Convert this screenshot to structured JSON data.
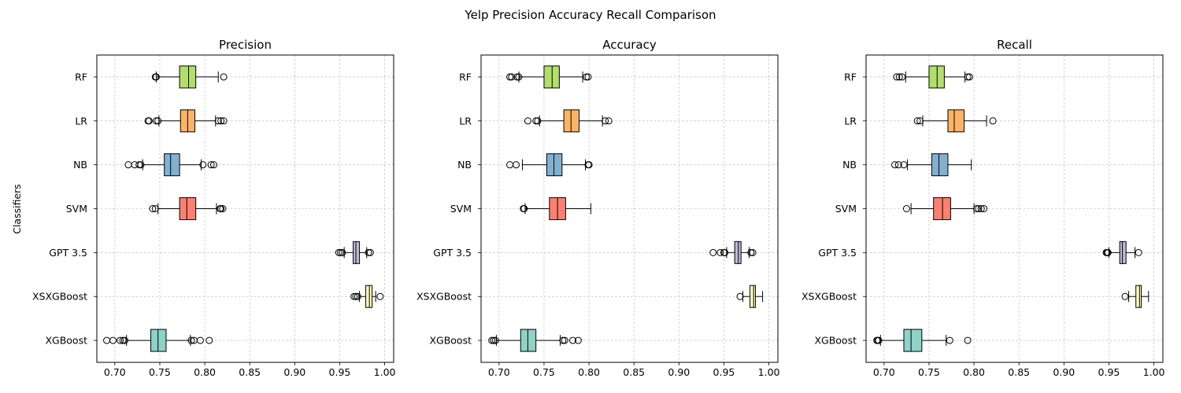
{
  "figure": {
    "suptitle": "Yelp Precision Accuracy Recall Comparison",
    "ylabel": "Classifiers",
    "grid": true,
    "orientation": "horizontal boxplot"
  },
  "series_colors": {
    "RF": "#b3de69",
    "LR": "#fdb462",
    "NB": "#80b1d3",
    "SVM": "#fb8072",
    "GPT 3.5": "#bebada",
    "XSXGBoost": "#ffffb3",
    "XGBoost": "#8dd3c7"
  },
  "chart_data": [
    {
      "type": "boxplot",
      "title": "Precision",
      "xlim": [
        0.68,
        1.01
      ],
      "xticks": [
        "0.70",
        "0.75",
        "0.80",
        "0.85",
        "0.90",
        "0.95",
        "1.00"
      ],
      "categories": [
        "RF",
        "LR",
        "NB",
        "SVM",
        "GPT 3.5",
        "XSXGBoost",
        "XGBoost"
      ],
      "boxes": [
        {
          "label": "RF",
          "whislo": 0.746,
          "q1": 0.772,
          "med": 0.782,
          "q3": 0.79,
          "whishi": 0.815,
          "fliers": [
            0.745,
            0.746,
            0.821
          ]
        },
        {
          "label": "LR",
          "whislo": 0.749,
          "q1": 0.773,
          "med": 0.781,
          "q3": 0.789,
          "whishi": 0.812,
          "fliers": [
            0.737,
            0.738,
            0.746,
            0.748,
            0.815,
            0.818,
            0.821
          ]
        },
        {
          "label": "NB",
          "whislo": 0.731,
          "q1": 0.755,
          "med": 0.762,
          "q3": 0.772,
          "whishi": 0.796,
          "fliers": [
            0.715,
            0.722,
            0.727,
            0.729,
            0.798,
            0.807,
            0.81
          ]
        },
        {
          "label": "SVM",
          "whislo": 0.748,
          "q1": 0.772,
          "med": 0.78,
          "q3": 0.79,
          "whishi": 0.813,
          "fliers": [
            0.742,
            0.745,
            0.817,
            0.818,
            0.82
          ]
        },
        {
          "label": "GPT 3.5",
          "whislo": 0.955,
          "q1": 0.965,
          "med": 0.968,
          "q3": 0.972,
          "whishi": 0.98,
          "fliers": [
            0.949,
            0.951,
            0.953,
            0.982,
            0.984
          ]
        },
        {
          "label": "XSXGBoost",
          "whislo": 0.972,
          "q1": 0.979,
          "med": 0.983,
          "q3": 0.986,
          "whishi": 0.99,
          "fliers": [
            0.966,
            0.968,
            0.97,
            0.995
          ]
        },
        {
          "label": "XGBoost",
          "whislo": 0.713,
          "q1": 0.74,
          "med": 0.748,
          "q3": 0.757,
          "whishi": 0.784,
          "fliers": [
            0.691,
            0.698,
            0.706,
            0.709,
            0.711,
            0.785,
            0.788,
            0.795,
            0.805
          ]
        }
      ]
    },
    {
      "type": "boxplot",
      "title": "Accuracy",
      "xlim": [
        0.68,
        1.01
      ],
      "xticks": [
        "0.70",
        "0.75",
        "0.80",
        "0.85",
        "0.90",
        "0.95",
        "1.00"
      ],
      "categories": [
        "RF",
        "LR",
        "NB",
        "SVM",
        "GPT 3.5",
        "XSXGBoost",
        "XGBoost"
      ],
      "boxes": [
        {
          "label": "RF",
          "whislo": 0.722,
          "q1": 0.75,
          "med": 0.759,
          "q3": 0.767,
          "whishi": 0.793,
          "fliers": [
            0.712,
            0.714,
            0.72,
            0.722,
            0.797,
            0.799
          ]
        },
        {
          "label": "LR",
          "whislo": 0.745,
          "q1": 0.772,
          "med": 0.78,
          "q3": 0.789,
          "whishi": 0.815,
          "fliers": [
            0.732,
            0.741,
            0.743,
            0.818,
            0.822
          ]
        },
        {
          "label": "NB",
          "whislo": 0.726,
          "q1": 0.753,
          "med": 0.761,
          "q3": 0.77,
          "whishi": 0.796,
          "fliers": [
            0.712,
            0.719,
            0.799,
            0.8
          ]
        },
        {
          "label": "SVM",
          "whislo": 0.729,
          "q1": 0.756,
          "med": 0.765,
          "q3": 0.774,
          "whishi": 0.802,
          "fliers": [
            0.727,
            0.728
          ]
        },
        {
          "label": "GPT 3.5",
          "whislo": 0.953,
          "q1": 0.962,
          "med": 0.966,
          "q3": 0.969,
          "whishi": 0.978,
          "fliers": [
            0.938,
            0.946,
            0.95,
            0.951,
            0.98,
            0.982
          ]
        },
        {
          "label": "XSXGBoost",
          "whislo": 0.971,
          "q1": 0.979,
          "med": 0.983,
          "q3": 0.985,
          "whishi": 0.993,
          "fliers": [
            0.968
          ]
        },
        {
          "label": "XGBoost",
          "whislo": 0.697,
          "q1": 0.724,
          "med": 0.732,
          "q3": 0.741,
          "whishi": 0.768,
          "fliers": [
            0.692,
            0.694,
            0.696,
            0.771,
            0.773,
            0.782,
            0.788
          ]
        }
      ]
    },
    {
      "type": "boxplot",
      "title": "Recall",
      "xlim": [
        0.68,
        1.01
      ],
      "xticks": [
        "0.70",
        "0.75",
        "0.80",
        "0.85",
        "0.90",
        "0.95",
        "1.00"
      ],
      "categories": [
        "RF",
        "LR",
        "NB",
        "SVM",
        "GPT 3.5",
        "XSXGBoost",
        "XGBoost"
      ],
      "boxes": [
        {
          "label": "RF",
          "whislo": 0.724,
          "q1": 0.75,
          "med": 0.759,
          "q3": 0.767,
          "whishi": 0.79,
          "fliers": [
            0.714,
            0.717,
            0.72,
            0.793,
            0.795
          ]
        },
        {
          "label": "LR",
          "whislo": 0.743,
          "q1": 0.771,
          "med": 0.778,
          "q3": 0.789,
          "whishi": 0.814,
          "fliers": [
            0.737,
            0.74,
            0.821
          ]
        },
        {
          "label": "NB",
          "whislo": 0.726,
          "q1": 0.753,
          "med": 0.761,
          "q3": 0.771,
          "whishi": 0.797,
          "fliers": [
            0.712,
            0.716,
            0.722
          ]
        },
        {
          "label": "SVM",
          "whislo": 0.73,
          "q1": 0.755,
          "med": 0.765,
          "q3": 0.774,
          "whishi": 0.8,
          "fliers": [
            0.725,
            0.803,
            0.805,
            0.808,
            0.811
          ]
        },
        {
          "label": "GPT 3.5",
          "whislo": 0.95,
          "q1": 0.962,
          "med": 0.965,
          "q3": 0.969,
          "whishi": 0.979,
          "fliers": [
            0.947,
            0.948,
            0.949,
            0.983
          ]
        },
        {
          "label": "XSXGBoost",
          "whislo": 0.972,
          "q1": 0.98,
          "med": 0.984,
          "q3": 0.986,
          "whishi": 0.994,
          "fliers": [
            0.968
          ]
        },
        {
          "label": "XGBoost",
          "whislo": 0.696,
          "q1": 0.722,
          "med": 0.73,
          "q3": 0.742,
          "whishi": 0.769,
          "fliers": [
            0.692,
            0.693,
            0.694,
            0.773,
            0.793
          ]
        }
      ]
    }
  ]
}
